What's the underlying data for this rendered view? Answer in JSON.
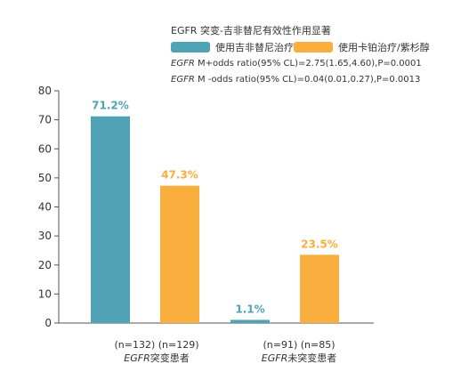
{
  "legend": {
    "title": "EGFR 突变-吉非替尼有效性作用显著",
    "items": [
      {
        "label": "使用吉非替尼治疗",
        "color": "#4fa3b5"
      },
      {
        "label": "使用卡铂治疗/紫杉醇",
        "color": "#f9ae3d"
      }
    ],
    "stats": [
      {
        "prefix": "EGFR",
        "text": " M+odds ratio(95% CL)=2.75(1.65,4.60),P=0.0001"
      },
      {
        "prefix": "EGFR",
        "text": " M -odds ratio(95% CL)=0.04(0.01,0.27),P=0.0013"
      }
    ]
  },
  "groups": [
    {
      "n_text": "(n=132) (n=129)",
      "prefix": "EGFR",
      "name": "突变患者"
    },
    {
      "n_text": "(n=91) (n=85)",
      "prefix": "EGFR",
      "name": "未突变患者"
    }
  ],
  "chart_data": {
    "type": "bar",
    "categories": [
      "EGFR突变患者",
      "EGFR未突变患者"
    ],
    "series": [
      {
        "name": "使用吉非替尼治疗",
        "values": [
          71.2,
          1.1
        ],
        "labels": [
          "71.2%",
          "1.1%"
        ],
        "color": "#4fa3b5"
      },
      {
        "name": "使用卡铂治疗/紫杉醇",
        "values": [
          47.3,
          23.5
        ],
        "labels": [
          "47.3%",
          "23.5%"
        ],
        "color": "#f9ae3d"
      }
    ],
    "ylim": [
      0,
      80
    ],
    "yticks": [
      0,
      10,
      20,
      30,
      40,
      50,
      60,
      70,
      80
    ],
    "grid": false,
    "legend_position": "top-right"
  }
}
